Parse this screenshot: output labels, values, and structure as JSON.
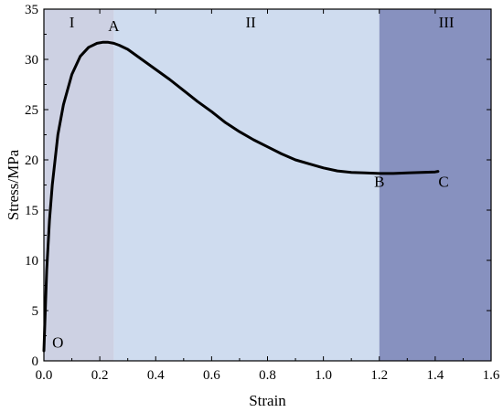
{
  "chart_data": {
    "type": "line",
    "title": "",
    "xlabel": "Strain",
    "ylabel": "Stress/MPa",
    "xlim": [
      0.0,
      1.6
    ],
    "ylim": [
      0,
      35
    ],
    "x_ticks": [
      0.0,
      0.2,
      0.4,
      0.6,
      0.8,
      1.0,
      1.2,
      1.4,
      1.6
    ],
    "x_tick_labels": [
      "0.0",
      "0.2",
      "0.4",
      "0.6",
      "0.8",
      "1.0",
      "1.2",
      "1.4",
      "1.6"
    ],
    "y_ticks": [
      0,
      5,
      10,
      15,
      20,
      25,
      30,
      35
    ],
    "y_tick_labels": [
      "0",
      "5",
      "10",
      "15",
      "20",
      "25",
      "30",
      "35"
    ],
    "grid": false,
    "regions": [
      {
        "label": "I",
        "x_start": 0.0,
        "x_end": 0.25,
        "color": "#cdd1e3"
      },
      {
        "label": "II",
        "x_start": 0.25,
        "x_end": 1.2,
        "color": "#cfdcef"
      },
      {
        "label": "III",
        "x_start": 1.2,
        "x_end": 1.6,
        "color": "#8791bf"
      }
    ],
    "point_labels": [
      {
        "label": "O",
        "x": 0.05,
        "y": 1.3
      },
      {
        "label": "A",
        "x": 0.25,
        "y": 32.8
      },
      {
        "label": "B",
        "x": 1.2,
        "y": 17.3
      },
      {
        "label": "C",
        "x": 1.43,
        "y": 17.3
      }
    ],
    "series": [
      {
        "color": "#000000",
        "x": [
          0.0,
          0.005,
          0.01,
          0.02,
          0.03,
          0.05,
          0.07,
          0.1,
          0.13,
          0.16,
          0.19,
          0.21,
          0.23,
          0.25,
          0.27,
          0.3,
          0.35,
          0.4,
          0.45,
          0.5,
          0.55,
          0.6,
          0.65,
          0.7,
          0.75,
          0.8,
          0.85,
          0.9,
          0.95,
          1.0,
          1.05,
          1.1,
          1.15,
          1.2,
          1.25,
          1.3,
          1.35,
          1.4,
          1.41
        ],
        "y": [
          1.0,
          5.0,
          9.0,
          14.0,
          17.5,
          22.5,
          25.5,
          28.5,
          30.3,
          31.2,
          31.6,
          31.7,
          31.7,
          31.6,
          31.4,
          31.0,
          30.0,
          29.0,
          28.0,
          26.9,
          25.8,
          24.8,
          23.7,
          22.8,
          22.0,
          21.3,
          20.6,
          20.0,
          19.6,
          19.2,
          18.9,
          18.75,
          18.7,
          18.65,
          18.65,
          18.7,
          18.75,
          18.8,
          18.85
        ]
      }
    ]
  }
}
